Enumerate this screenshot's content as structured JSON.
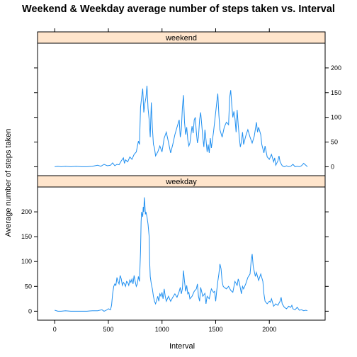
{
  "chart_data": {
    "type": "line",
    "title": "Weekend & Weekday average number of steps taken vs. Interval",
    "xlabel": "Interval",
    "ylabel": "Average number of steps taken",
    "xlim": [
      -160,
      2520
    ],
    "ylim": [
      -18,
      250
    ],
    "x_ticks": [
      0,
      500,
      1000,
      1500,
      2000
    ],
    "y_ticks": [
      0,
      50,
      100,
      150,
      200
    ],
    "line_color": "#1f8ff0",
    "strip_color": "#ffe5cc",
    "panels": [
      {
        "name": "weekend",
        "y_tick_side": "right",
        "points": [
          [
            0,
            0
          ],
          [
            30,
            1
          ],
          [
            60,
            0
          ],
          [
            100,
            1
          ],
          [
            150,
            0
          ],
          [
            200,
            1
          ],
          [
            250,
            0
          ],
          [
            300,
            0
          ],
          [
            350,
            1
          ],
          [
            400,
            3
          ],
          [
            430,
            1
          ],
          [
            460,
            5
          ],
          [
            490,
            2
          ],
          [
            520,
            3
          ],
          [
            540,
            8
          ],
          [
            560,
            2
          ],
          [
            580,
            5
          ],
          [
            600,
            4
          ],
          [
            620,
            12
          ],
          [
            640,
            18
          ],
          [
            650,
            7
          ],
          [
            660,
            14
          ],
          [
            680,
            10
          ],
          [
            700,
            20
          ],
          [
            720,
            15
          ],
          [
            740,
            25
          ],
          [
            760,
            30
          ],
          [
            780,
            52
          ],
          [
            790,
            45
          ],
          [
            800,
            120
          ],
          [
            810,
            140
          ],
          [
            820,
            158
          ],
          [
            830,
            110
          ],
          [
            840,
            128
          ],
          [
            850,
            140
          ],
          [
            860,
            164
          ],
          [
            870,
            118
          ],
          [
            880,
            95
          ],
          [
            890,
            60
          ],
          [
            900,
            130
          ],
          [
            910,
            80
          ],
          [
            920,
            45
          ],
          [
            930,
            38
          ],
          [
            940,
            22
          ],
          [
            960,
            30
          ],
          [
            980,
            42
          ],
          [
            1000,
            30
          ],
          [
            1020,
            58
          ],
          [
            1040,
            70
          ],
          [
            1060,
            50
          ],
          [
            1080,
            28
          ],
          [
            1100,
            45
          ],
          [
            1120,
            65
          ],
          [
            1140,
            80
          ],
          [
            1160,
            95
          ],
          [
            1170,
            60
          ],
          [
            1180,
            75
          ],
          [
            1190,
            120
          ],
          [
            1200,
            145
          ],
          [
            1210,
            90
          ],
          [
            1220,
            65
          ],
          [
            1230,
            80
          ],
          [
            1240,
            55
          ],
          [
            1250,
            42
          ],
          [
            1260,
            48
          ],
          [
            1280,
            82
          ],
          [
            1290,
            68
          ],
          [
            1300,
            95
          ],
          [
            1310,
            100
          ],
          [
            1320,
            70
          ],
          [
            1330,
            48
          ],
          [
            1340,
            60
          ],
          [
            1350,
            96
          ],
          [
            1360,
            110
          ],
          [
            1370,
            85
          ],
          [
            1380,
            60
          ],
          [
            1390,
            40
          ],
          [
            1400,
            75
          ],
          [
            1410,
            55
          ],
          [
            1420,
            30
          ],
          [
            1430,
            45
          ],
          [
            1440,
            28
          ],
          [
            1450,
            58
          ],
          [
            1460,
            38
          ],
          [
            1480,
            70
          ],
          [
            1500,
            110
          ],
          [
            1510,
            130
          ],
          [
            1520,
            148
          ],
          [
            1530,
            105
          ],
          [
            1540,
            75
          ],
          [
            1560,
            60
          ],
          [
            1580,
            80
          ],
          [
            1600,
            90
          ],
          [
            1620,
            85
          ],
          [
            1630,
            140
          ],
          [
            1640,
            155
          ],
          [
            1650,
            125
          ],
          [
            1660,
            100
          ],
          [
            1670,
            112
          ],
          [
            1680,
            98
          ],
          [
            1690,
            70
          ],
          [
            1700,
            115
          ],
          [
            1710,
            85
          ],
          [
            1720,
            60
          ],
          [
            1730,
            40
          ],
          [
            1740,
            50
          ],
          [
            1750,
            70
          ],
          [
            1760,
            45
          ],
          [
            1780,
            62
          ],
          [
            1800,
            75
          ],
          [
            1820,
            60
          ],
          [
            1840,
            48
          ],
          [
            1860,
            62
          ],
          [
            1880,
            90
          ],
          [
            1890,
            70
          ],
          [
            1900,
            80
          ],
          [
            1920,
            65
          ],
          [
            1930,
            45
          ],
          [
            1950,
            28
          ],
          [
            1960,
            42
          ],
          [
            1980,
            20
          ],
          [
            2000,
            15
          ],
          [
            2020,
            25
          ],
          [
            2040,
            10
          ],
          [
            2050,
            18
          ],
          [
            2060,
            3
          ],
          [
            2080,
            12
          ],
          [
            2090,
            22
          ],
          [
            2100,
            10
          ],
          [
            2120,
            2
          ],
          [
            2140,
            0
          ],
          [
            2160,
            2
          ],
          [
            2180,
            0
          ],
          [
            2200,
            1
          ],
          [
            2220,
            5
          ],
          [
            2240,
            0
          ],
          [
            2260,
            1
          ],
          [
            2280,
            0
          ],
          [
            2300,
            2
          ],
          [
            2320,
            7
          ],
          [
            2340,
            3
          ],
          [
            2355,
            0
          ]
        ]
      },
      {
        "name": "weekday",
        "y_tick_side": "left",
        "points": [
          [
            0,
            2
          ],
          [
            30,
            0
          ],
          [
            60,
            0
          ],
          [
            100,
            1
          ],
          [
            150,
            0
          ],
          [
            200,
            0
          ],
          [
            250,
            0
          ],
          [
            300,
            0
          ],
          [
            350,
            1
          ],
          [
            400,
            1
          ],
          [
            440,
            3
          ],
          [
            460,
            0
          ],
          [
            480,
            2
          ],
          [
            500,
            5
          ],
          [
            510,
            4
          ],
          [
            520,
            3
          ],
          [
            530,
            12
          ],
          [
            540,
            35
          ],
          [
            550,
            50
          ],
          [
            560,
            55
          ],
          [
            570,
            52
          ],
          [
            580,
            68
          ],
          [
            590,
            60
          ],
          [
            600,
            55
          ],
          [
            610,
            72
          ],
          [
            620,
            65
          ],
          [
            630,
            52
          ],
          [
            640,
            58
          ],
          [
            650,
            55
          ],
          [
            660,
            50
          ],
          [
            670,
            60
          ],
          [
            680,
            58
          ],
          [
            690,
            52
          ],
          [
            700,
            63
          ],
          [
            710,
            58
          ],
          [
            720,
            65
          ],
          [
            730,
            55
          ],
          [
            740,
            72
          ],
          [
            750,
            60
          ],
          [
            760,
            50
          ],
          [
            770,
            55
          ],
          [
            780,
            70
          ],
          [
            790,
            60
          ],
          [
            800,
            120
          ],
          [
            805,
            180
          ],
          [
            810,
            200
          ],
          [
            820,
            190
          ],
          [
            825,
            210
          ],
          [
            830,
            200
          ],
          [
            835,
            229
          ],
          [
            840,
            215
          ],
          [
            845,
            195
          ],
          [
            850,
            200
          ],
          [
            860,
            190
          ],
          [
            870,
            175
          ],
          [
            880,
            150
          ],
          [
            885,
            100
          ],
          [
            890,
            70
          ],
          [
            900,
            55
          ],
          [
            910,
            45
          ],
          [
            920,
            30
          ],
          [
            930,
            20
          ],
          [
            940,
            15
          ],
          [
            950,
            22
          ],
          [
            960,
            30
          ],
          [
            970,
            20
          ],
          [
            980,
            35
          ],
          [
            990,
            30
          ],
          [
            1000,
            38
          ],
          [
            1010,
            25
          ],
          [
            1020,
            45
          ],
          [
            1030,
            30
          ],
          [
            1040,
            20
          ],
          [
            1060,
            30
          ],
          [
            1080,
            20
          ],
          [
            1100,
            28
          ],
          [
            1120,
            35
          ],
          [
            1140,
            28
          ],
          [
            1160,
            40
          ],
          [
            1170,
            48
          ],
          [
            1180,
            35
          ],
          [
            1190,
            45
          ],
          [
            1200,
            82
          ],
          [
            1210,
            60
          ],
          [
            1220,
            40
          ],
          [
            1230,
            52
          ],
          [
            1240,
            35
          ],
          [
            1250,
            38
          ],
          [
            1260,
            25
          ],
          [
            1280,
            30
          ],
          [
            1300,
            40
          ],
          [
            1320,
            45
          ],
          [
            1330,
            55
          ],
          [
            1340,
            30
          ],
          [
            1350,
            20
          ],
          [
            1360,
            48
          ],
          [
            1380,
            30
          ],
          [
            1400,
            36
          ],
          [
            1410,
            15
          ],
          [
            1420,
            30
          ],
          [
            1440,
            25
          ],
          [
            1460,
            45
          ],
          [
            1480,
            38
          ],
          [
            1490,
            40
          ],
          [
            1500,
            20
          ],
          [
            1510,
            42
          ],
          [
            1520,
            60
          ],
          [
            1530,
            75
          ],
          [
            1540,
            95
          ],
          [
            1550,
            85
          ],
          [
            1560,
            60
          ],
          [
            1570,
            50
          ],
          [
            1580,
            48
          ],
          [
            1600,
            45
          ],
          [
            1620,
            50
          ],
          [
            1640,
            42
          ],
          [
            1660,
            38
          ],
          [
            1680,
            60
          ],
          [
            1700,
            52
          ],
          [
            1710,
            65
          ],
          [
            1720,
            58
          ],
          [
            1740,
            35
          ],
          [
            1750,
            50
          ],
          [
            1760,
            45
          ],
          [
            1780,
            55
          ],
          [
            1800,
            68
          ],
          [
            1820,
            75
          ],
          [
            1830,
            100
          ],
          [
            1840,
            115
          ],
          [
            1850,
            90
          ],
          [
            1860,
            80
          ],
          [
            1870,
            70
          ],
          [
            1880,
            78
          ],
          [
            1900,
            62
          ],
          [
            1920,
            75
          ],
          [
            1940,
            60
          ],
          [
            1950,
            35
          ],
          [
            1960,
            20
          ],
          [
            1980,
            15
          ],
          [
            2000,
            20
          ],
          [
            2010,
            18
          ],
          [
            2020,
            25
          ],
          [
            2040,
            10
          ],
          [
            2060,
            15
          ],
          [
            2080,
            12
          ],
          [
            2100,
            20
          ],
          [
            2110,
            28
          ],
          [
            2120,
            15
          ],
          [
            2140,
            8
          ],
          [
            2160,
            5
          ],
          [
            2180,
            10
          ],
          [
            2200,
            8
          ],
          [
            2210,
            12
          ],
          [
            2220,
            5
          ],
          [
            2240,
            3
          ],
          [
            2260,
            8
          ],
          [
            2280,
            2
          ],
          [
            2300,
            3
          ],
          [
            2320,
            1
          ],
          [
            2340,
            2
          ],
          [
            2355,
            1
          ]
        ]
      }
    ]
  }
}
